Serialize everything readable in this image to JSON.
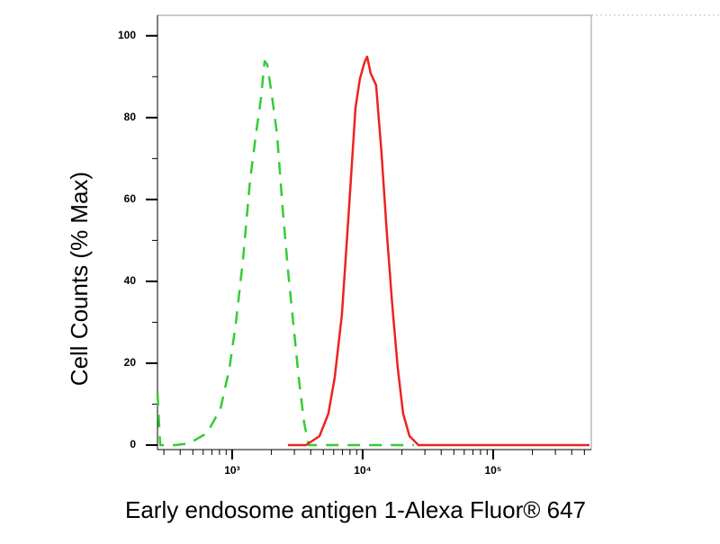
{
  "chart_data": {
    "type": "line",
    "x_label": "Early endosome antigen 1-Alexa Fluor® 647",
    "y_label": "Cell Counts (% Max)",
    "x_scale": "log",
    "xlim": [
      268,
      565000
    ],
    "ylim": [
      -1.1,
      105
    ],
    "xticks": [
      {
        "value": 1000,
        "label": "10³"
      },
      {
        "value": 10000,
        "label": "10⁴"
      },
      {
        "value": 100000,
        "label": "10⁵"
      }
    ],
    "x_minor_ticks": [
      300,
      400,
      500,
      600,
      700,
      800,
      900,
      2000,
      3000,
      4000,
      5000,
      6000,
      7000,
      8000,
      9000,
      20000,
      30000,
      40000,
      50000,
      60000,
      70000,
      80000,
      90000,
      200000,
      300000,
      400000,
      500000
    ],
    "yticks": [
      0,
      20,
      40,
      60,
      80,
      100
    ],
    "y_minor_ticks": [
      10,
      30,
      50,
      70,
      90
    ],
    "series": [
      {
        "color": "#33cc33",
        "line_style": "dashed",
        "x": [
          268,
          281,
          368,
          467,
          641,
          813,
          953,
          1066,
          1210,
          1374,
          1536,
          1662,
          1772,
          1857,
          2011,
          2212,
          2433,
          2677,
          2944,
          3238,
          3563,
          3855,
          5050,
          24700
        ],
        "values": [
          12.7,
          0,
          0,
          0.4,
          2.9,
          8.8,
          18.7,
          29.7,
          45.1,
          64.8,
          76.9,
          84.6,
          93.8,
          93,
          85.7,
          75.8,
          58.2,
          42.9,
          29.7,
          16.5,
          5.5,
          0,
          0,
          0
        ]
      },
      {
        "color": "#ee2222",
        "line_style": "solid",
        "x": [
          2677,
          3681,
          4668,
          5470,
          6110,
          6936,
          7880,
          8810,
          9530,
          10320,
          10820,
          11530,
          12680,
          13960,
          15350,
          16880,
          18580,
          20430,
          22840,
          26770,
          64100,
          547000
        ],
        "values": [
          0,
          0,
          2.2,
          7.7,
          16.5,
          31.9,
          58.2,
          82.4,
          89.5,
          93.4,
          94.9,
          90.8,
          87.9,
          71.4,
          51.6,
          34.1,
          18.7,
          7.7,
          2.2,
          0,
          0,
          0
        ]
      }
    ]
  }
}
